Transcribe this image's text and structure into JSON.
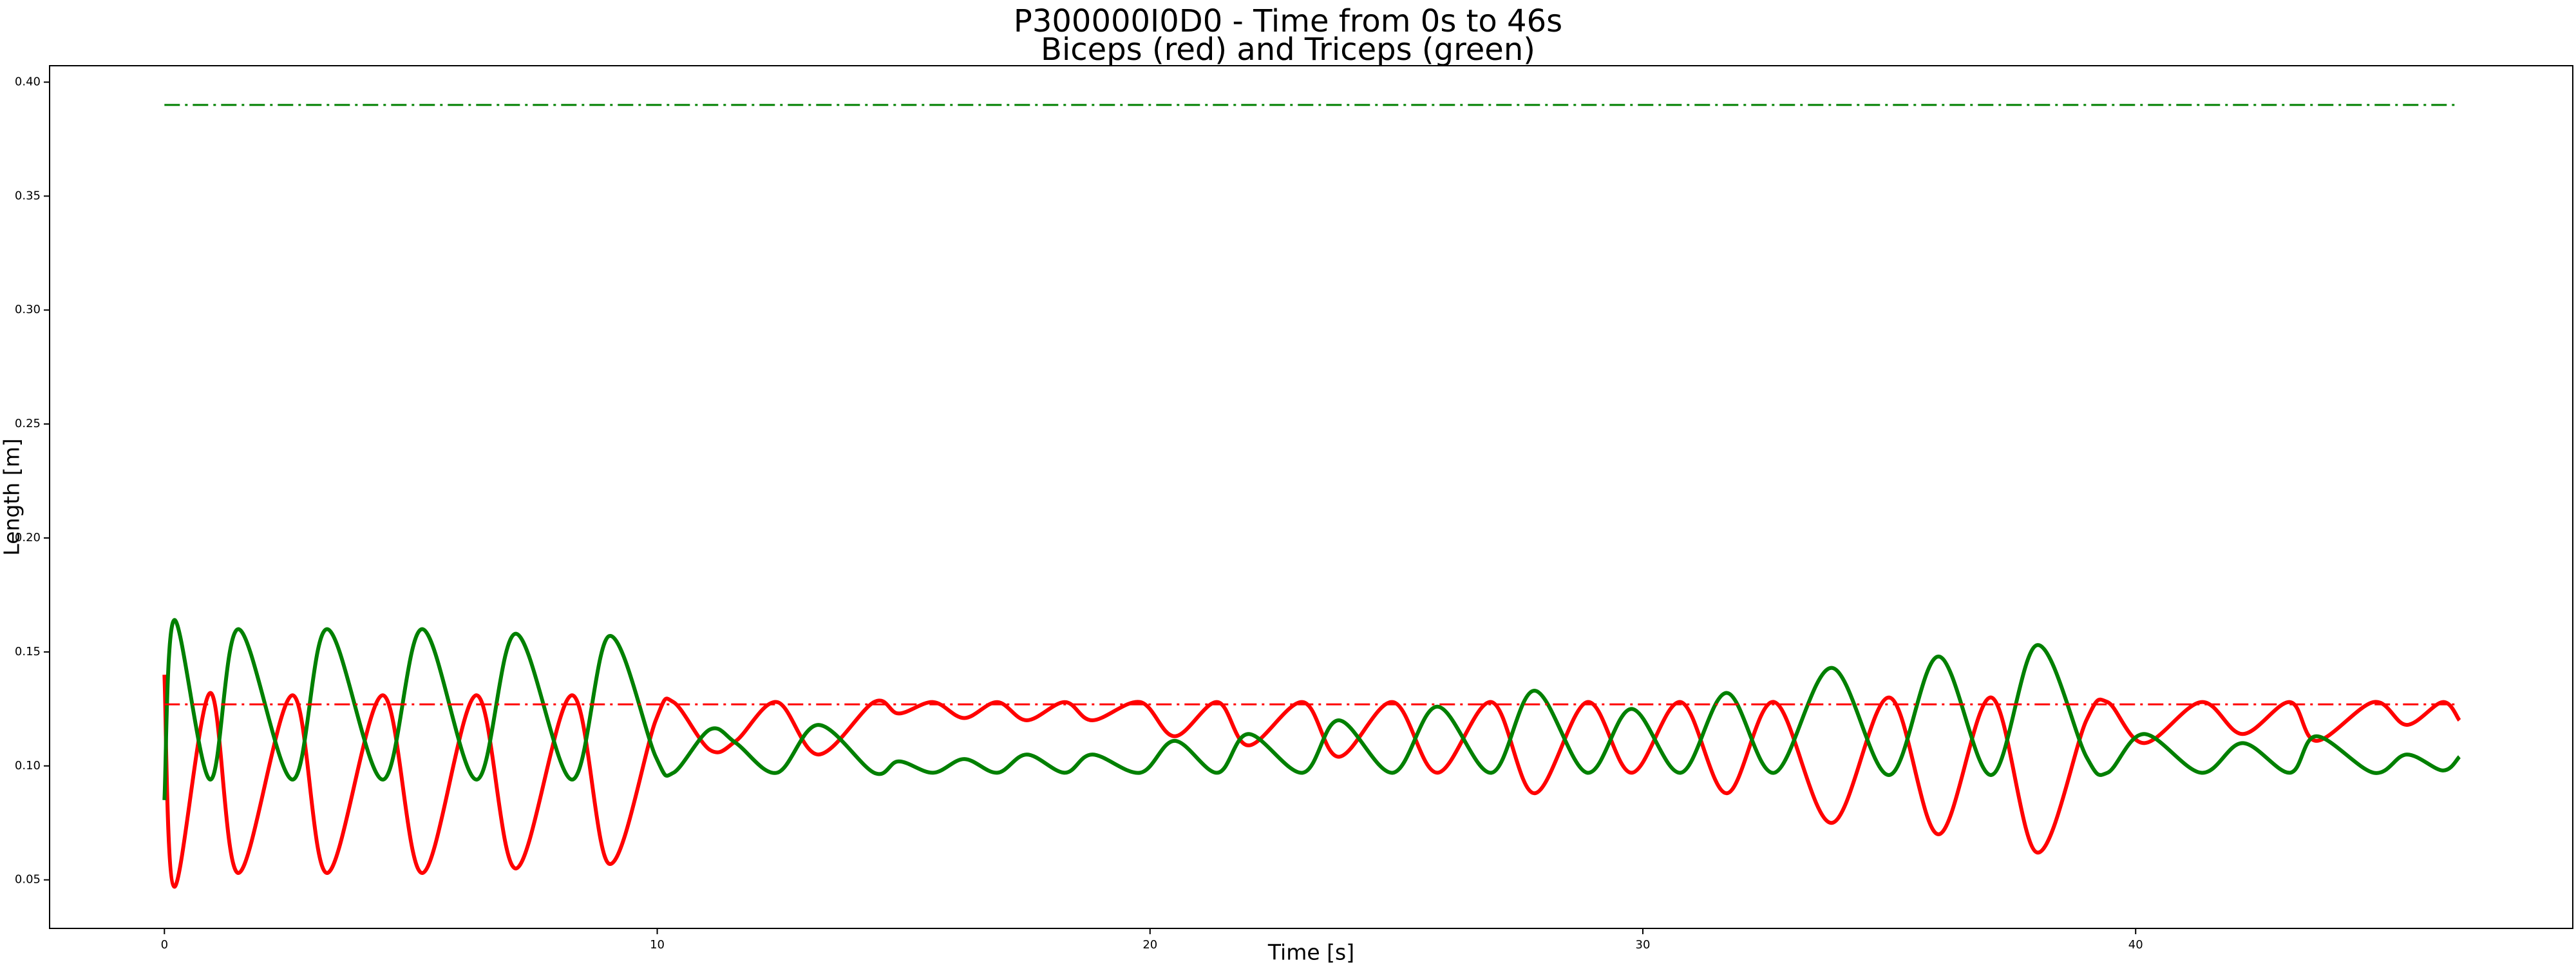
{
  "chart_data": {
    "type": "line",
    "title": "P300000I0D0 - Time from 0s to 46s",
    "subtitle": "Biceps (red) and Triceps (green)",
    "x_label": "Time [s]",
    "y_label": "Length [m]",
    "x": [
      0,
      0.2,
      0.93,
      1.5,
      2.6,
      3.3,
      4.43,
      5.23,
      6.33,
      7.13,
      8.27,
      9.03,
      9.97,
      10.33,
      11.07,
      11.6,
      12.43,
      13.27,
      14.4,
      14.9,
      15.6,
      16.23,
      16.9,
      17.5,
      18.27,
      18.83,
      19.8,
      20.5,
      21.37,
      22.0,
      23.1,
      23.83,
      24.93,
      25.83,
      26.93,
      27.8,
      28.87,
      29.77,
      30.77,
      31.7,
      32.67,
      33.83,
      35.0,
      36.0,
      37.07,
      38.0,
      39.0,
      39.43,
      40.17,
      41.33,
      42.17,
      43.13,
      43.67,
      44.83,
      45.5,
      46.23,
      46.57
    ],
    "series": [
      {
        "color": "#ff0000",
        "style": "solid",
        "values": [
          0.14,
          0.047,
          0.132,
          0.053,
          0.131,
          0.053,
          0.131,
          0.053,
          0.131,
          0.055,
          0.131,
          0.057,
          0.12,
          0.128,
          0.107,
          0.111,
          0.128,
          0.105,
          0.128,
          0.123,
          0.128,
          0.121,
          0.128,
          0.12,
          0.128,
          0.12,
          0.128,
          0.113,
          0.128,
          0.109,
          0.128,
          0.104,
          0.128,
          0.097,
          0.128,
          0.088,
          0.128,
          0.097,
          0.128,
          0.088,
          0.128,
          0.075,
          0.13,
          0.07,
          0.13,
          0.062,
          0.12,
          0.128,
          0.11,
          0.128,
          0.114,
          0.128,
          0.111,
          0.128,
          0.118,
          0.128,
          0.12
        ]
      },
      {
        "color": "#008000",
        "style": "solid",
        "values": [
          0.085,
          0.164,
          0.094,
          0.16,
          0.094,
          0.16,
          0.094,
          0.16,
          0.094,
          0.158,
          0.094,
          0.157,
          0.104,
          0.097,
          0.116,
          0.11,
          0.097,
          0.118,
          0.097,
          0.102,
          0.097,
          0.103,
          0.097,
          0.105,
          0.097,
          0.105,
          0.097,
          0.111,
          0.097,
          0.114,
          0.097,
          0.12,
          0.097,
          0.126,
          0.097,
          0.133,
          0.097,
          0.125,
          0.097,
          0.132,
          0.097,
          0.143,
          0.096,
          0.148,
          0.096,
          0.153,
          0.104,
          0.097,
          0.114,
          0.097,
          0.11,
          0.097,
          0.113,
          0.097,
          0.105,
          0.098,
          0.104
        ]
      },
      {
        "color": "#ff0000",
        "style": "dashdot",
        "x": [
          0,
          46.57
        ],
        "values": [
          0.127,
          0.127
        ]
      },
      {
        "color": "#008000",
        "style": "dashdot",
        "x": [
          0,
          46.57
        ],
        "values": [
          0.39,
          0.39
        ]
      }
    ],
    "xlim": [
      -2.33,
      48.87
    ],
    "ylim": [
      0.0287,
      0.4072
    ],
    "xticks": [
      0,
      10,
      20,
      30,
      40
    ],
    "yticks": [
      0.05,
      {
        "value": 0.1,
        "label": "0.10"
      },
      0.15,
      {
        "value": 0.2,
        "label": "0.20"
      },
      0.25,
      {
        "value": 0.3,
        "label": "0.30"
      },
      0.35,
      {
        "value": 0.4,
        "label": "0.40"
      }
    ],
    "grid": false
  }
}
